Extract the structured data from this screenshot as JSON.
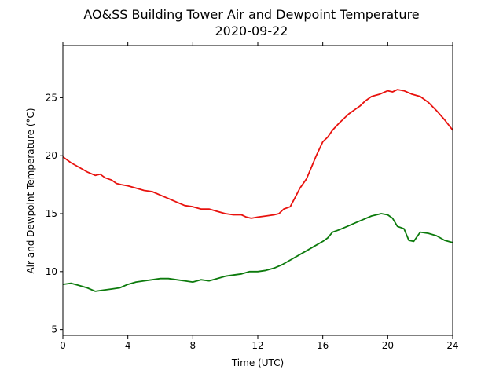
{
  "chart_data": {
    "type": "line",
    "title": "AO&SS Building Tower Air and Dewpoint Temperature",
    "subtitle": "2020-09-22",
    "xlabel": "Time (UTC)",
    "ylabel": "Air and Dewpoint Temperature (°C)",
    "xlim": [
      0,
      24
    ],
    "ylim": [
      4.5,
      29.5
    ],
    "xticks": [
      0,
      4,
      8,
      12,
      16,
      20,
      24
    ],
    "yticks": [
      5,
      10,
      15,
      20,
      25
    ],
    "grid": false,
    "legend": "none",
    "series": [
      {
        "color": "#e8120e",
        "x": [
          0,
          0.5,
          1,
          1.5,
          2,
          2.3,
          2.6,
          3,
          3.3,
          3.6,
          4,
          4.5,
          5,
          5.5,
          6,
          6.5,
          7,
          7.5,
          8,
          8.5,
          9,
          9.5,
          10,
          10.5,
          11,
          11.3,
          11.6,
          12,
          12.5,
          13,
          13.3,
          13.6,
          14,
          14.3,
          14.6,
          15,
          15.3,
          15.6,
          16,
          16.3,
          16.6,
          17,
          17.3,
          17.6,
          18,
          18.3,
          18.6,
          19,
          19.5,
          20,
          20.3,
          20.6,
          21,
          21.5,
          22,
          22.5,
          23,
          23.5,
          24
        ],
        "y": [
          19.9,
          19.4,
          19.0,
          18.6,
          18.3,
          18.4,
          18.1,
          17.9,
          17.6,
          17.5,
          17.4,
          17.2,
          17.0,
          16.9,
          16.6,
          16.3,
          16.0,
          15.7,
          15.6,
          15.4,
          15.4,
          15.2,
          15.0,
          14.9,
          14.9,
          14.7,
          14.6,
          14.7,
          14.8,
          14.9,
          15.0,
          15.4,
          15.6,
          16.4,
          17.2,
          18.0,
          19.0,
          20.0,
          21.2,
          21.6,
          22.2,
          22.8,
          23.2,
          23.6,
          24.0,
          24.3,
          24.7,
          25.1,
          25.3,
          25.6,
          25.5,
          25.7,
          25.6,
          25.3,
          25.1,
          24.6,
          23.9,
          23.1,
          22.2
        ]
      },
      {
        "color": "#0c7a0c",
        "x": [
          0,
          0.5,
          1,
          1.5,
          2,
          2.5,
          3,
          3.5,
          4,
          4.5,
          5,
          5.5,
          6,
          6.5,
          7,
          7.5,
          8,
          8.5,
          9,
          9.5,
          10,
          10.5,
          11,
          11.5,
          12,
          12.5,
          13,
          13.5,
          14,
          14.5,
          15,
          15.5,
          16,
          16.3,
          16.6,
          17,
          17.5,
          18,
          18.5,
          19,
          19.3,
          19.6,
          20,
          20.3,
          20.6,
          21,
          21.3,
          21.6,
          22,
          22.5,
          23,
          23.5,
          24
        ],
        "y": [
          8.9,
          9.0,
          8.8,
          8.6,
          8.3,
          8.4,
          8.5,
          8.6,
          8.9,
          9.1,
          9.2,
          9.3,
          9.4,
          9.4,
          9.3,
          9.2,
          9.1,
          9.3,
          9.2,
          9.4,
          9.6,
          9.7,
          9.8,
          10.0,
          10.0,
          10.1,
          10.3,
          10.6,
          11.0,
          11.4,
          11.8,
          12.2,
          12.6,
          12.9,
          13.4,
          13.6,
          13.9,
          14.2,
          14.5,
          14.8,
          14.9,
          15.0,
          14.9,
          14.6,
          13.9,
          13.7,
          12.7,
          12.6,
          13.4,
          13.3,
          13.1,
          12.7,
          12.5
        ]
      }
    ]
  }
}
